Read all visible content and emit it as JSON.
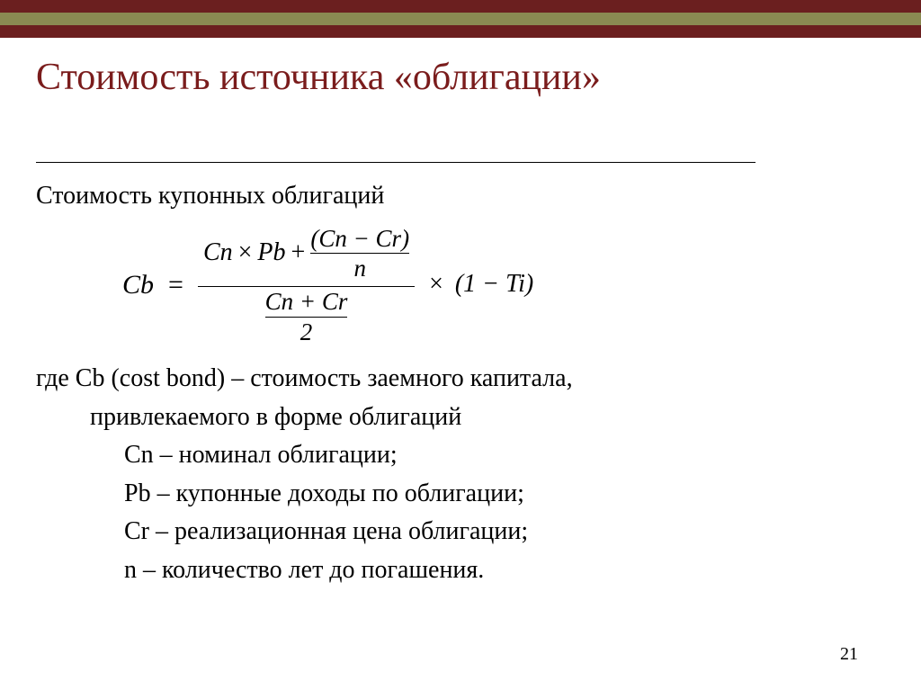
{
  "bands": {
    "color1": "#6b1f1f",
    "color2": "#8a8a52",
    "color3": "#6b1f1f"
  },
  "title": {
    "text": "Стоимость источника «облигации»",
    "color": "#7a1c1c"
  },
  "subtitle": "Стоимость купонных облигаций",
  "formula": {
    "result": "Cb",
    "num_left": "Cn",
    "num_left_op": "×",
    "num_left2": "Pb",
    "num_plus": "+",
    "inner_num": "(Cn − Cr)",
    "inner_den": "n",
    "den_num": "Cn + Cr",
    "den_den": "2",
    "tail_times": "×",
    "tail_paren": "(1 − Ti)"
  },
  "definitions": {
    "cb1": "где  Cb (cost bond) – стоимость заемного капитала,",
    "cb2": "привлекаемого в форме облигаций",
    "cn": "Cn – номинал облигации;",
    "pb": "Pb – купонные доходы по облигации;",
    "cr": "Cr – реализационная цена облигации;",
    "n": "n – количество лет до погашения."
  },
  "page_number": "21"
}
